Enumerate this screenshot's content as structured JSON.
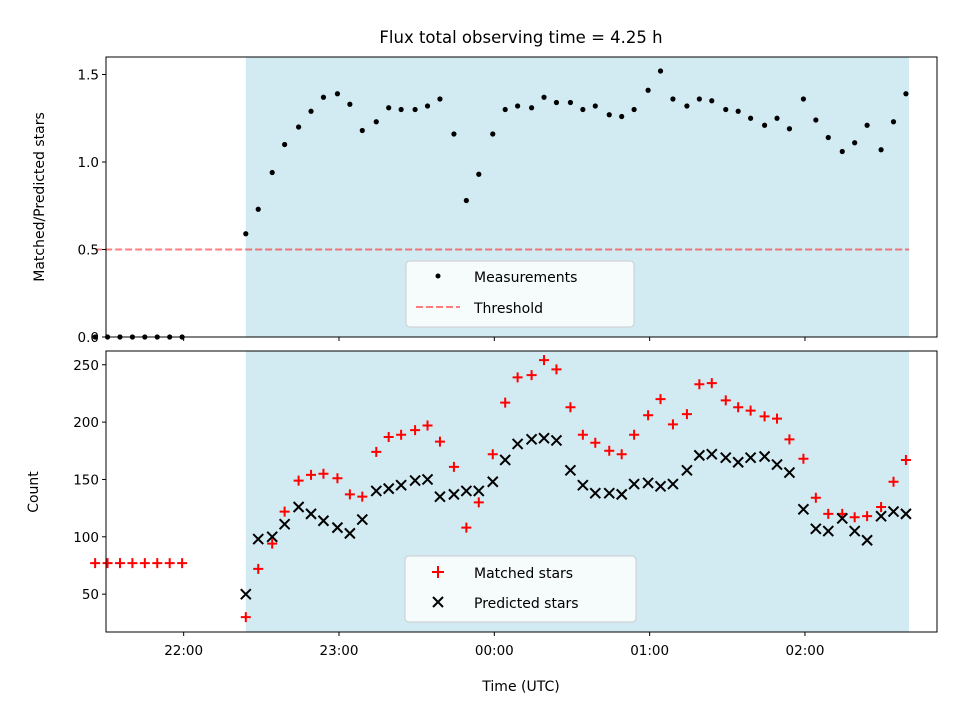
{
  "title": "Flux total observing time = 4.25 h",
  "colors": {
    "shade": "#add8e6",
    "threshold": "#ff0000",
    "matched": "#ff0000",
    "predicted": "#000000",
    "measurement": "#000000"
  },
  "chart_data": [
    {
      "type": "scatter",
      "panel": "top",
      "ylabel": "Matched/Predicted stars",
      "ylim": [
        0,
        1.6
      ],
      "yticks": [
        0.0,
        0.5,
        1.0,
        1.5
      ],
      "ytick_labels": [
        "0.0",
        "0.5",
        "1.0",
        "1.5"
      ],
      "xlim_hours": [
        21.5,
        26.85
      ],
      "shaded_interval_hours": [
        22.4,
        26.67
      ],
      "threshold": {
        "name": "Threshold",
        "value": 0.5,
        "x_range_hours": [
          21.43,
          26.67
        ],
        "style": "dashed"
      },
      "legend": {
        "placement": "lower center",
        "entries": [
          "Measurements",
          "Threshold"
        ]
      },
      "series": [
        {
          "name": "Measurements",
          "marker": "dot",
          "points": [
            [
              21.43,
              0.0
            ],
            [
              21.51,
              0.0
            ],
            [
              21.59,
              0.0
            ],
            [
              21.67,
              0.0
            ],
            [
              21.75,
              0.0
            ],
            [
              21.83,
              0.0
            ],
            [
              21.91,
              0.0
            ],
            [
              21.99,
              0.0
            ],
            [
              22.4,
              0.59
            ],
            [
              22.48,
              0.73
            ],
            [
              22.57,
              0.94
            ],
            [
              22.65,
              1.1
            ],
            [
              22.74,
              1.2
            ],
            [
              22.82,
              1.29
            ],
            [
              22.9,
              1.37
            ],
            [
              22.99,
              1.39
            ],
            [
              23.07,
              1.33
            ],
            [
              23.15,
              1.18
            ],
            [
              23.24,
              1.23
            ],
            [
              23.32,
              1.31
            ],
            [
              23.4,
              1.3
            ],
            [
              23.49,
              1.3
            ],
            [
              23.57,
              1.32
            ],
            [
              23.65,
              1.36
            ],
            [
              23.74,
              1.16
            ],
            [
              23.82,
              0.78
            ],
            [
              23.9,
              0.93
            ],
            [
              23.99,
              1.16
            ],
            [
              24.07,
              1.3
            ],
            [
              24.15,
              1.32
            ],
            [
              24.24,
              1.31
            ],
            [
              24.32,
              1.37
            ],
            [
              24.4,
              1.34
            ],
            [
              24.49,
              1.34
            ],
            [
              24.57,
              1.3
            ],
            [
              24.65,
              1.32
            ],
            [
              24.74,
              1.27
            ],
            [
              24.82,
              1.26
            ],
            [
              24.9,
              1.3
            ],
            [
              24.99,
              1.41
            ],
            [
              25.07,
              1.52
            ],
            [
              25.15,
              1.36
            ],
            [
              25.24,
              1.32
            ],
            [
              25.32,
              1.36
            ],
            [
              25.4,
              1.35
            ],
            [
              25.49,
              1.3
            ],
            [
              25.57,
              1.29
            ],
            [
              25.65,
              1.25
            ],
            [
              25.74,
              1.21
            ],
            [
              25.82,
              1.25
            ],
            [
              25.9,
              1.19
            ],
            [
              25.99,
              1.36
            ],
            [
              26.07,
              1.24
            ],
            [
              26.15,
              1.14
            ],
            [
              26.24,
              1.06
            ],
            [
              26.32,
              1.11
            ],
            [
              26.4,
              1.21
            ],
            [
              26.49,
              1.07
            ],
            [
              26.57,
              1.23
            ],
            [
              26.65,
              1.39
            ]
          ]
        }
      ]
    },
    {
      "type": "scatter",
      "panel": "bottom",
      "xlabel": "Time (UTC)",
      "ylabel": "Count",
      "ylim": [
        17,
        262
      ],
      "yticks": [
        50,
        100,
        150,
        200,
        250
      ],
      "ytick_labels": [
        "50",
        "100",
        "150",
        "200",
        "250"
      ],
      "xlim_hours": [
        21.5,
        26.85
      ],
      "xticks_hours": [
        22,
        23,
        24,
        25,
        26
      ],
      "xtick_labels": [
        "22:00",
        "23:00",
        "00:00",
        "01:00",
        "02:00"
      ],
      "shaded_interval_hours": [
        22.4,
        26.67
      ],
      "legend": {
        "placement": "lower center",
        "entries": [
          "Matched stars",
          "Predicted stars"
        ]
      },
      "series": [
        {
          "name": "Matched stars",
          "marker": "plus",
          "points": [
            [
              21.43,
              77
            ],
            [
              21.51,
              77
            ],
            [
              21.59,
              77
            ],
            [
              21.67,
              77
            ],
            [
              21.75,
              77
            ],
            [
              21.83,
              77
            ],
            [
              21.91,
              77
            ],
            [
              21.99,
              77
            ],
            [
              22.4,
              30
            ],
            [
              22.48,
              72
            ],
            [
              22.57,
              94
            ],
            [
              22.65,
              122
            ],
            [
              22.74,
              149
            ],
            [
              22.82,
              154
            ],
            [
              22.9,
              155
            ],
            [
              22.99,
              151
            ],
            [
              23.07,
              137
            ],
            [
              23.15,
              135
            ],
            [
              23.24,
              174
            ],
            [
              23.32,
              187
            ],
            [
              23.4,
              189
            ],
            [
              23.49,
              193
            ],
            [
              23.57,
              197
            ],
            [
              23.65,
              183
            ],
            [
              23.74,
              161
            ],
            [
              23.82,
              108
            ],
            [
              23.9,
              130
            ],
            [
              23.99,
              172
            ],
            [
              24.07,
              217
            ],
            [
              24.15,
              239
            ],
            [
              24.24,
              241
            ],
            [
              24.32,
              254
            ],
            [
              24.4,
              246
            ],
            [
              24.49,
              213
            ],
            [
              24.57,
              189
            ],
            [
              24.65,
              182
            ],
            [
              24.74,
              175
            ],
            [
              24.82,
              172
            ],
            [
              24.9,
              189
            ],
            [
              24.99,
              206
            ],
            [
              25.07,
              220
            ],
            [
              25.15,
              198
            ],
            [
              25.24,
              207
            ],
            [
              25.32,
              233
            ],
            [
              25.4,
              234
            ],
            [
              25.49,
              219
            ],
            [
              25.57,
              213
            ],
            [
              25.65,
              210
            ],
            [
              25.74,
              205
            ],
            [
              25.82,
              203
            ],
            [
              25.9,
              185
            ],
            [
              25.99,
              168
            ],
            [
              26.07,
              134
            ],
            [
              26.15,
              120
            ],
            [
              26.24,
              120
            ],
            [
              26.32,
              117
            ],
            [
              26.4,
              118
            ],
            [
              26.49,
              126
            ],
            [
              26.57,
              148
            ],
            [
              26.65,
              167
            ]
          ]
        },
        {
          "name": "Predicted stars",
          "marker": "x",
          "points": [
            [
              22.4,
              50
            ],
            [
              22.48,
              98
            ],
            [
              22.57,
              100
            ],
            [
              22.65,
              111
            ],
            [
              22.74,
              126
            ],
            [
              22.82,
              120
            ],
            [
              22.9,
              114
            ],
            [
              22.99,
              108
            ],
            [
              23.07,
              103
            ],
            [
              23.15,
              115
            ],
            [
              23.24,
              140
            ],
            [
              23.32,
              142
            ],
            [
              23.4,
              145
            ],
            [
              23.49,
              149
            ],
            [
              23.57,
              150
            ],
            [
              23.65,
              135
            ],
            [
              23.74,
              137
            ],
            [
              23.82,
              140
            ],
            [
              23.9,
              140
            ],
            [
              23.99,
              148
            ],
            [
              24.07,
              167
            ],
            [
              24.15,
              181
            ],
            [
              24.24,
              185
            ],
            [
              24.32,
              186
            ],
            [
              24.4,
              184
            ],
            [
              24.49,
              158
            ],
            [
              24.57,
              145
            ],
            [
              24.65,
              138
            ],
            [
              24.74,
              138
            ],
            [
              24.82,
              137
            ],
            [
              24.9,
              146
            ],
            [
              24.99,
              147
            ],
            [
              25.07,
              144
            ],
            [
              25.15,
              146
            ],
            [
              25.24,
              158
            ],
            [
              25.32,
              171
            ],
            [
              25.4,
              172
            ],
            [
              25.49,
              169
            ],
            [
              25.57,
              165
            ],
            [
              25.65,
              169
            ],
            [
              25.74,
              170
            ],
            [
              25.82,
              163
            ],
            [
              25.9,
              156
            ],
            [
              25.99,
              124
            ],
            [
              26.07,
              107
            ],
            [
              26.15,
              105
            ],
            [
              26.24,
              116
            ],
            [
              26.32,
              105
            ],
            [
              26.4,
              97
            ],
            [
              26.49,
              118
            ],
            [
              26.57,
              122
            ],
            [
              26.65,
              120
            ]
          ]
        }
      ]
    }
  ]
}
